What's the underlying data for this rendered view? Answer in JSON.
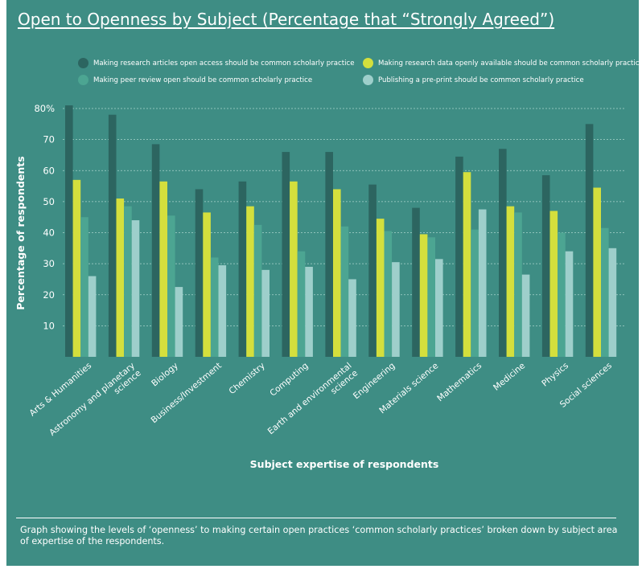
{
  "title": "Open to Openness by Subject (Percentage that “Strongly Agreed”)",
  "caption": " Graph showing the levels of ‘openness’ to making certain open practices ‘common scholarly practices’ broken down by subject area of expertise of the respondents.",
  "colors": {
    "background": "#3e8d84",
    "series": [
      "#2c6560",
      "#d4df3d",
      "#4ca592",
      "#9ecfcb"
    ],
    "gridline": "#a9d3cc",
    "text": "#ffffff"
  },
  "chart_data": {
    "type": "bar",
    "xlabel": "Subject expertise of respondents",
    "ylabel": "Percentage of respondents",
    "ylim": [
      0,
      80
    ],
    "yticks": [
      "10",
      "20",
      "30",
      "40",
      "50",
      "60",
      "70",
      "80%"
    ],
    "ytick_values": [
      10,
      20,
      30,
      40,
      50,
      60,
      70,
      80
    ],
    "grid": true,
    "legend_position": "top",
    "categories": [
      "Arts & Humanities",
      "Astronomy and planetary science",
      "Biology",
      "Business/Investment",
      "Chemistry",
      "Computing",
      "Earth and environmental science",
      "Engineering",
      "Materials science",
      "Mathematics",
      "Medicine",
      "Physics",
      "Social sciences"
    ],
    "series": [
      {
        "name": "Making research articles open access should be common scholarly practice",
        "values": [
          81,
          78,
          68.5,
          54,
          56.5,
          66,
          66,
          55.5,
          48,
          64.5,
          67,
          58.5,
          75
        ]
      },
      {
        "name": "Making research data openly available should be common scholarly practice",
        "values": [
          57,
          51,
          56.5,
          46.5,
          48.5,
          56.5,
          54,
          44.5,
          39.5,
          59.5,
          48.5,
          47,
          54.5
        ]
      },
      {
        "name": "Making peer review open should be common scholarly practice",
        "values": [
          45,
          48.5,
          45.5,
          32,
          42.5,
          34,
          42,
          40.5,
          38.5,
          41,
          46.5,
          40,
          41.5
        ]
      },
      {
        "name": "Publishing a pre-print should be common scholarly practice",
        "values": [
          26,
          44,
          22.5,
          29.5,
          28,
          29,
          25,
          30.5,
          31.5,
          47.5,
          26.5,
          34,
          35
        ]
      }
    ]
  }
}
